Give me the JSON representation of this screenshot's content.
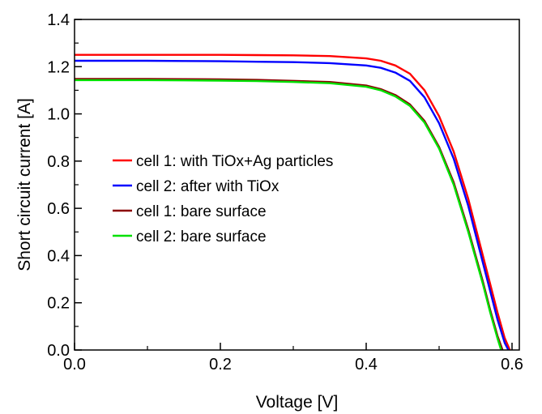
{
  "chart_data": {
    "type": "line",
    "xlabel": "Voltage [V]",
    "ylabel": "Short circuit current [A]",
    "xlim": [
      0.0,
      0.61
    ],
    "ylim": [
      0.0,
      1.4
    ],
    "xticks": [
      "0.0",
      "0.2",
      "0.4",
      "0.6"
    ],
    "xtick_values": [
      0.0,
      0.2,
      0.4,
      0.6
    ],
    "yticks": [
      "0.0",
      "0.2",
      "0.4",
      "0.6",
      "0.8",
      "1.0",
      "1.2",
      "1.4"
    ],
    "ytick_values": [
      0.0,
      0.2,
      0.4,
      0.6,
      0.8,
      1.0,
      1.2,
      1.4
    ],
    "grid": false,
    "legend_position": "center-left",
    "series": [
      {
        "name": "cell 1: with TiOx+Ag particles",
        "color": "#ff0000",
        "x": [
          0.0,
          0.05,
          0.1,
          0.15,
          0.2,
          0.25,
          0.3,
          0.35,
          0.4,
          0.42,
          0.44,
          0.46,
          0.48,
          0.5,
          0.52,
          0.54,
          0.56,
          0.57,
          0.58,
          0.59,
          0.597
        ],
        "y": [
          1.25,
          1.25,
          1.25,
          1.25,
          1.25,
          1.249,
          1.248,
          1.245,
          1.235,
          1.225,
          1.205,
          1.17,
          1.1,
          0.99,
          0.84,
          0.64,
          0.4,
          0.28,
          0.16,
          0.05,
          0.0
        ]
      },
      {
        "name": "cell 2: after with TiOx",
        "color": "#0000ff",
        "x": [
          0.0,
          0.05,
          0.1,
          0.15,
          0.2,
          0.25,
          0.3,
          0.35,
          0.4,
          0.42,
          0.44,
          0.46,
          0.48,
          0.5,
          0.52,
          0.54,
          0.56,
          0.57,
          0.58,
          0.59,
          0.595
        ],
        "y": [
          1.225,
          1.225,
          1.225,
          1.224,
          1.223,
          1.221,
          1.219,
          1.215,
          1.205,
          1.195,
          1.175,
          1.14,
          1.07,
          0.96,
          0.81,
          0.61,
          0.37,
          0.25,
          0.13,
          0.03,
          0.0
        ]
      },
      {
        "name": "cell 1: bare surface",
        "color": "#8b0000",
        "x": [
          0.0,
          0.05,
          0.1,
          0.15,
          0.2,
          0.25,
          0.3,
          0.35,
          0.4,
          0.42,
          0.44,
          0.46,
          0.48,
          0.5,
          0.52,
          0.54,
          0.56,
          0.57,
          0.58,
          0.587
        ],
        "y": [
          1.148,
          1.148,
          1.148,
          1.147,
          1.146,
          1.144,
          1.14,
          1.135,
          1.12,
          1.105,
          1.08,
          1.04,
          0.97,
          0.86,
          0.71,
          0.51,
          0.29,
          0.17,
          0.06,
          0.0
        ]
      },
      {
        "name": "cell 2: bare surface",
        "color": "#00e000",
        "x": [
          0.0,
          0.05,
          0.1,
          0.15,
          0.2,
          0.25,
          0.3,
          0.35,
          0.4,
          0.42,
          0.44,
          0.46,
          0.48,
          0.5,
          0.52,
          0.54,
          0.56,
          0.57,
          0.58,
          0.585
        ],
        "y": [
          1.143,
          1.143,
          1.143,
          1.142,
          1.141,
          1.139,
          1.135,
          1.13,
          1.115,
          1.1,
          1.074,
          1.034,
          0.963,
          0.853,
          0.7,
          0.5,
          0.28,
          0.16,
          0.05,
          0.0
        ]
      }
    ]
  }
}
